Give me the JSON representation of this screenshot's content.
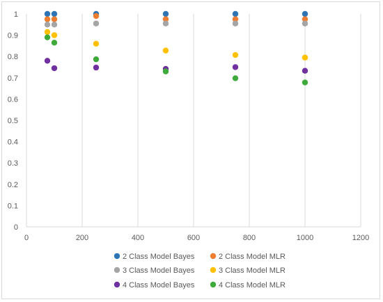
{
  "chart_data": {
    "type": "scatter",
    "title": "",
    "xlabel": "",
    "ylabel": "",
    "xlim": [
      0,
      1200
    ],
    "ylim": [
      0,
      1
    ],
    "x_ticks": [
      "0",
      "200",
      "400",
      "600",
      "800",
      "1000",
      "1200"
    ],
    "y_ticks": [
      "0",
      "0.1",
      "0.2",
      "0.3",
      "0.4",
      "0.5",
      "0.6",
      "0.7",
      "0.8",
      "0.9",
      "1"
    ],
    "grid": "vertical",
    "legend_position": "bottom",
    "series": [
      {
        "name": "2 Class Model Bayes",
        "color": "#2E75B6",
        "x": [
          75,
          100,
          250,
          500,
          750,
          1000
        ],
        "y": [
          1.0,
          1.0,
          1.0,
          1.0,
          1.0,
          1.0
        ]
      },
      {
        "name": "2 Class Model MLR",
        "color": "#ED7D31",
        "x": [
          75,
          100,
          250,
          500,
          750,
          1000
        ],
        "y": [
          0.975,
          0.975,
          0.99,
          0.975,
          0.975,
          0.975
        ]
      },
      {
        "name": "3 Class Model Bayes",
        "color": "#A5A5A5",
        "x": [
          75,
          100,
          250,
          500,
          750,
          1000
        ],
        "y": [
          0.95,
          0.95,
          0.955,
          0.955,
          0.955,
          0.955
        ]
      },
      {
        "name": "3 Class Model MLR",
        "color": "#FFC000",
        "x": [
          75,
          100,
          250,
          500,
          750,
          1000
        ],
        "y": [
          0.915,
          0.9,
          0.86,
          0.828,
          0.807,
          0.795
        ]
      },
      {
        "name": "4 Class Model Bayes",
        "color": "#7030A0",
        "x": [
          75,
          100,
          250,
          500,
          750,
          1000
        ],
        "y": [
          0.78,
          0.745,
          0.748,
          0.742,
          0.75,
          0.733
        ]
      },
      {
        "name": "4 Class Model MLR",
        "color": "#3EAA3A",
        "x": [
          75,
          100,
          250,
          500,
          750,
          1000
        ],
        "y": [
          0.89,
          0.865,
          0.787,
          0.73,
          0.698,
          0.678
        ]
      }
    ]
  }
}
